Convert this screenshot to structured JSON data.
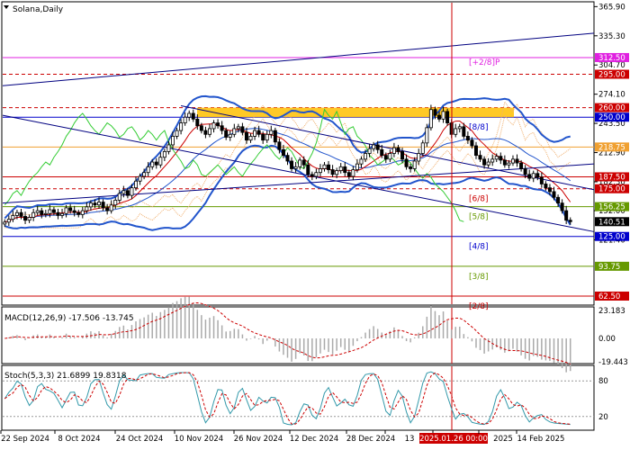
{
  "chart_data": {
    "type": "candlestick",
    "title": "Solana,Daily",
    "x_ticks": [
      "22 Sep 2024",
      "8 Oct 2024",
      "24 Oct 2024",
      "10 Nov 2024",
      "26 Nov 2024",
      "12 Dec 2024",
      "28 Dec 2024",
      "13",
      "2025.01.26 00:00",
      "2025",
      "14 Feb 2025"
    ],
    "price_axis": {
      "ticks": [
        365.9,
        335.3,
        304.7,
        274.1,
        243.5,
        212.9,
        182.3,
        152.0,
        121.4
      ],
      "ylim": [
        54,
        370
      ]
    },
    "current_price": 140.51,
    "murrey_levels": [
      {
        "price": 312.5,
        "label": "[+2/8]P",
        "color": "#e020e0",
        "style": "solid"
      },
      {
        "price": 295.0,
        "label": "",
        "color": "#cc0000",
        "style": "dashed"
      },
      {
        "price": 260.0,
        "label": "",
        "color": "#cc0000",
        "style": "dashed"
      },
      {
        "price": 250.0,
        "label": "[8/8]",
        "color": "#0000cc",
        "style": "solid"
      },
      {
        "price": 218.75,
        "label": "",
        "color": "#f0a030",
        "style": "solid"
      },
      {
        "price": 187.5,
        "label": "",
        "color": "#cc0000",
        "style": "solid"
      },
      {
        "price": 175.0,
        "label": "[6/8]",
        "color": "#cc0000",
        "style": "dashed"
      },
      {
        "price": 156.25,
        "label": "[5/8]",
        "color": "#669900",
        "style": "solid"
      },
      {
        "price": 125.0,
        "label": "[4/8]",
        "color": "#0000cc",
        "style": "solid"
      },
      {
        "price": 93.75,
        "label": "[3/8]",
        "color": "#669900",
        "style": "solid"
      },
      {
        "price": 62.5,
        "label": "[2/8]",
        "color": "#cc0000",
        "style": "solid"
      }
    ],
    "highlight_zone": {
      "price_low": 250,
      "price_high": 260
    },
    "candles_close": [
      140,
      143,
      147,
      150,
      146,
      142,
      145,
      150,
      152,
      148,
      149,
      153,
      150,
      147,
      149,
      155,
      152,
      150,
      148,
      152,
      156,
      160,
      158,
      161,
      155,
      152,
      158,
      163,
      170,
      173,
      168,
      176,
      183,
      188,
      192,
      198,
      203,
      200,
      208,
      214,
      221,
      230,
      236,
      244,
      250,
      254,
      248,
      241,
      236,
      232,
      238,
      244,
      241,
      236,
      229,
      232,
      238,
      240,
      234,
      226,
      230,
      236,
      232,
      226,
      232,
      236,
      224,
      216,
      210,
      204,
      196,
      198,
      205,
      200,
      190,
      188,
      192,
      196,
      200,
      195,
      190,
      194,
      198,
      192,
      188,
      195,
      201,
      206,
      212,
      217,
      221,
      216,
      210,
      206,
      212,
      218,
      214,
      206,
      198,
      196,
      204,
      212,
      223,
      239,
      258,
      252,
      248,
      256,
      244,
      232,
      238,
      240,
      230,
      226,
      220,
      210,
      206,
      200,
      203,
      206,
      209,
      205,
      200,
      202,
      206,
      202,
      196,
      190,
      186,
      191,
      187,
      180,
      176,
      172,
      166,
      160,
      152,
      142,
      140.51
    ],
    "volatility_bands": {
      "upper_start": 150,
      "upper_peak": 262,
      "mid_peak": 242,
      "lower_start": 132
    },
    "trend_lines": [
      {
        "from": [
          "start",
          252
        ],
        "to": [
          "end",
          130
        ],
        "color": "#000080"
      },
      {
        "from": [
          "start",
          160
        ],
        "to": [
          "end",
          201
        ],
        "color": "#000080"
      },
      {
        "from": [
          "start",
          283
        ],
        "to": [
          "end",
          338
        ],
        "color": "#000080"
      },
      {
        "from": [
          "2024-11-10",
          262
        ],
        "to": [
          "end",
          174
        ],
        "color": "#000080"
      }
    ],
    "vertical_marker": "2025.01.26 00:00",
    "macd": {
      "label": "MACD(12,26,9) -17.506 -13.745",
      "params": "12,26,9",
      "main": -17.506,
      "signal": -13.745,
      "ticks": [
        23.183,
        0.0,
        -19.443
      ]
    },
    "stoch": {
      "label": "Stoch(5,3,3) 21.6899 19.8318",
      "params": "5,3,3",
      "k": 21.6899,
      "d": 19.8318,
      "ticks": [
        80,
        20
      ]
    },
    "colors": {
      "up_candle": "#ffffff",
      "down_candle": "#000000",
      "band": "#2255cc",
      "green_line": "#33cc33",
      "ichimoku_cloud": "#f0b070",
      "red_signal": "#cc0000",
      "stoch_k": "#3399aa",
      "stoch_d": "#cc0000"
    }
  }
}
